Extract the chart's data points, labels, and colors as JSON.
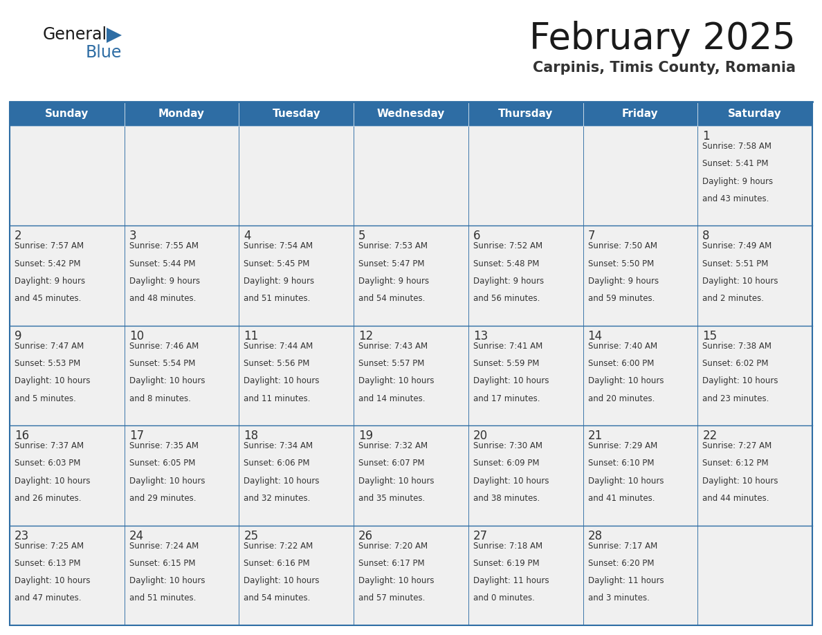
{
  "title": "February 2025",
  "subtitle": "Carpinis, Timis County, Romania",
  "days_of_week": [
    "Sunday",
    "Monday",
    "Tuesday",
    "Wednesday",
    "Thursday",
    "Friday",
    "Saturday"
  ],
  "header_bg": "#2E6DA4",
  "header_text": "#FFFFFF",
  "cell_bg": "#F0F0F0",
  "border_color": "#2E6DA4",
  "title_color": "#1a1a1a",
  "subtitle_color": "#333333",
  "day_num_color": "#333333",
  "cell_text_color": "#333333",
  "calendar_data": [
    [
      null,
      null,
      null,
      null,
      null,
      null,
      1
    ],
    [
      2,
      3,
      4,
      5,
      6,
      7,
      8
    ],
    [
      9,
      10,
      11,
      12,
      13,
      14,
      15
    ],
    [
      16,
      17,
      18,
      19,
      20,
      21,
      22
    ],
    [
      23,
      24,
      25,
      26,
      27,
      28,
      null
    ]
  ],
  "sunrise_data": {
    "1": "7:58 AM",
    "2": "7:57 AM",
    "3": "7:55 AM",
    "4": "7:54 AM",
    "5": "7:53 AM",
    "6": "7:52 AM",
    "7": "7:50 AM",
    "8": "7:49 AM",
    "9": "7:47 AM",
    "10": "7:46 AM",
    "11": "7:44 AM",
    "12": "7:43 AM",
    "13": "7:41 AM",
    "14": "7:40 AM",
    "15": "7:38 AM",
    "16": "7:37 AM",
    "17": "7:35 AM",
    "18": "7:34 AM",
    "19": "7:32 AM",
    "20": "7:30 AM",
    "21": "7:29 AM",
    "22": "7:27 AM",
    "23": "7:25 AM",
    "24": "7:24 AM",
    "25": "7:22 AM",
    "26": "7:20 AM",
    "27": "7:18 AM",
    "28": "7:17 AM"
  },
  "sunset_data": {
    "1": "5:41 PM",
    "2": "5:42 PM",
    "3": "5:44 PM",
    "4": "5:45 PM",
    "5": "5:47 PM",
    "6": "5:48 PM",
    "7": "5:50 PM",
    "8": "5:51 PM",
    "9": "5:53 PM",
    "10": "5:54 PM",
    "11": "5:56 PM",
    "12": "5:57 PM",
    "13": "5:59 PM",
    "14": "6:00 PM",
    "15": "6:02 PM",
    "16": "6:03 PM",
    "17": "6:05 PM",
    "18": "6:06 PM",
    "19": "6:07 PM",
    "20": "6:09 PM",
    "21": "6:10 PM",
    "22": "6:12 PM",
    "23": "6:13 PM",
    "24": "6:15 PM",
    "25": "6:16 PM",
    "26": "6:17 PM",
    "27": "6:19 PM",
    "28": "6:20 PM"
  },
  "daylight_data": {
    "1": [
      "9 hours",
      "and 43 minutes."
    ],
    "2": [
      "9 hours",
      "and 45 minutes."
    ],
    "3": [
      "9 hours",
      "and 48 minutes."
    ],
    "4": [
      "9 hours",
      "and 51 minutes."
    ],
    "5": [
      "9 hours",
      "and 54 minutes."
    ],
    "6": [
      "9 hours",
      "and 56 minutes."
    ],
    "7": [
      "9 hours",
      "and 59 minutes."
    ],
    "8": [
      "10 hours",
      "and 2 minutes."
    ],
    "9": [
      "10 hours",
      "and 5 minutes."
    ],
    "10": [
      "10 hours",
      "and 8 minutes."
    ],
    "11": [
      "10 hours",
      "and 11 minutes."
    ],
    "12": [
      "10 hours",
      "and 14 minutes."
    ],
    "13": [
      "10 hours",
      "and 17 minutes."
    ],
    "14": [
      "10 hours",
      "and 20 minutes."
    ],
    "15": [
      "10 hours",
      "and 23 minutes."
    ],
    "16": [
      "10 hours",
      "and 26 minutes."
    ],
    "17": [
      "10 hours",
      "and 29 minutes."
    ],
    "18": [
      "10 hours",
      "and 32 minutes."
    ],
    "19": [
      "10 hours",
      "and 35 minutes."
    ],
    "20": [
      "10 hours",
      "and 38 minutes."
    ],
    "21": [
      "10 hours",
      "and 41 minutes."
    ],
    "22": [
      "10 hours",
      "and 44 minutes."
    ],
    "23": [
      "10 hours",
      "and 47 minutes."
    ],
    "24": [
      "10 hours",
      "and 51 minutes."
    ],
    "25": [
      "10 hours",
      "and 54 minutes."
    ],
    "26": [
      "10 hours",
      "and 57 minutes."
    ],
    "27": [
      "11 hours",
      "and 0 minutes."
    ],
    "28": [
      "11 hours",
      "and 3 minutes."
    ]
  },
  "logo_general_color": "#1a1a1a",
  "logo_blue_color": "#2E6DA4",
  "logo_triangle_color": "#2E6DA4",
  "bg_color": "#FFFFFF"
}
